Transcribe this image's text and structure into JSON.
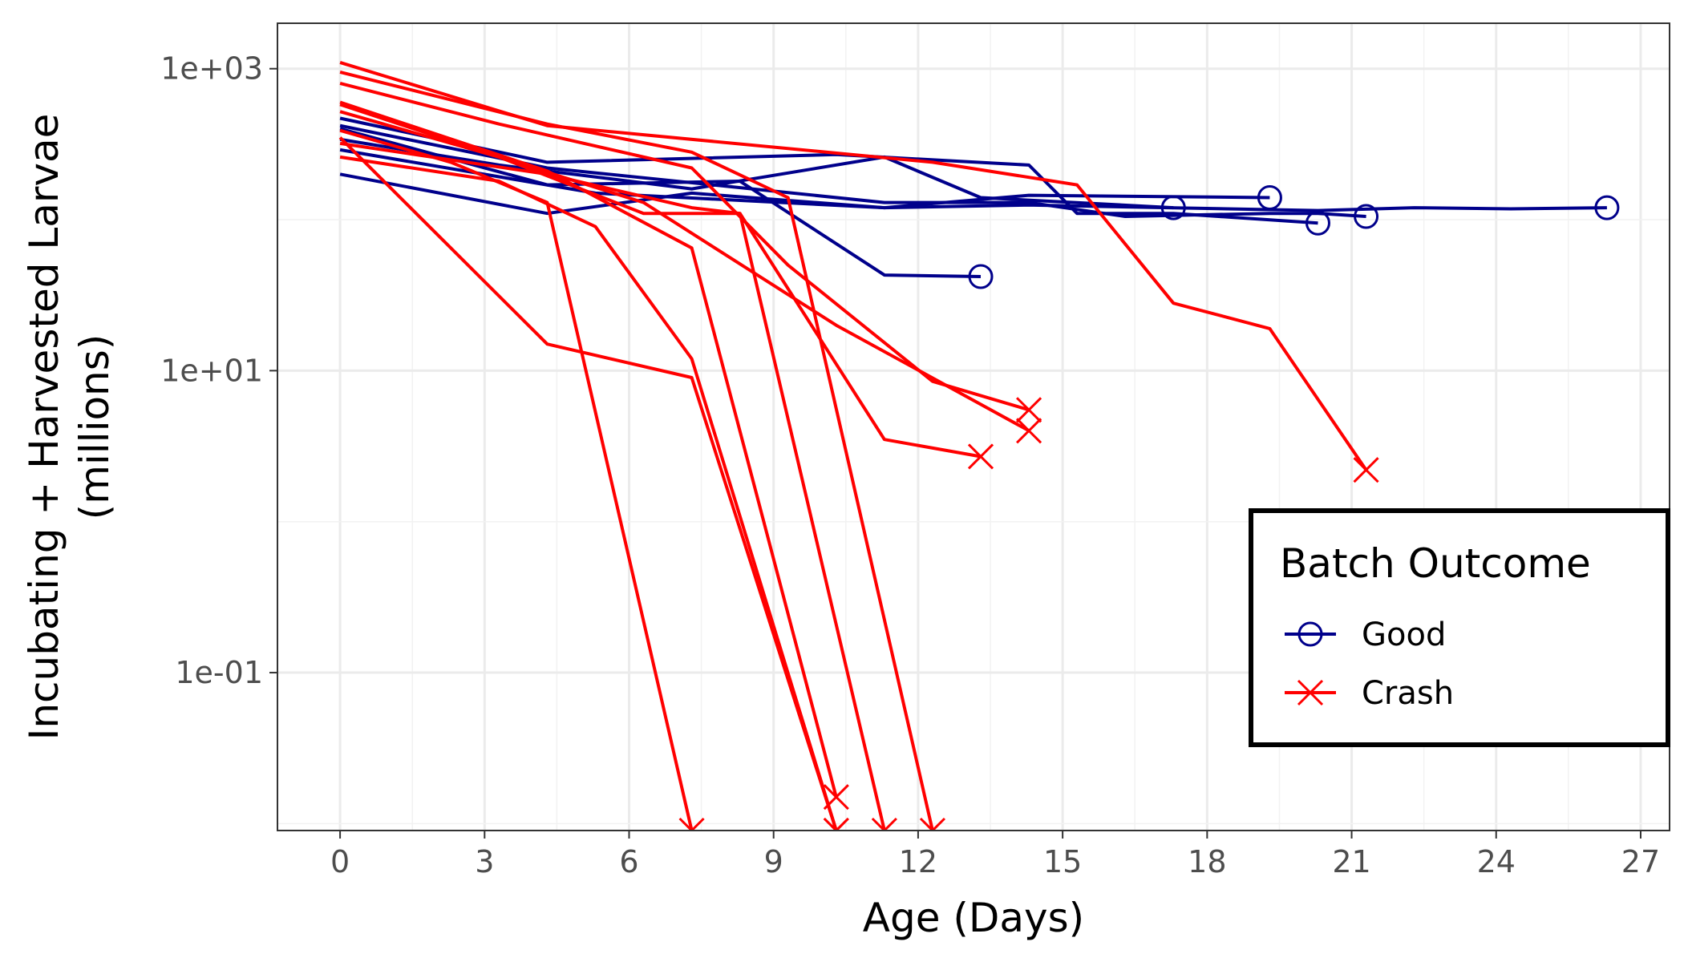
{
  "chart_data": {
    "type": "line",
    "title": "",
    "xlabel": "Age (Days)",
    "ylabel_lines": [
      "Incubating + Harvested Larvae",
      "(millions)"
    ],
    "xlim": [
      -1.3,
      27.6
    ],
    "ylim": [
      0.009,
      2000
    ],
    "y_scale": "log10",
    "x_ticks": [
      0,
      3,
      6,
      9,
      12,
      15,
      18,
      21,
      24,
      27
    ],
    "x_tick_labels": [
      "0",
      "3",
      "6",
      "9",
      "12",
      "15",
      "18",
      "21",
      "24",
      "27"
    ],
    "y_ticks": [
      0.1,
      10,
      1000
    ],
    "y_tick_labels": [
      "1e-01",
      "1e+01",
      "1e+03"
    ],
    "grid": true,
    "legend": {
      "title": "Batch Outcome",
      "position": "right",
      "entries": [
        {
          "label": "Good",
          "color": "#00008b",
          "marker": "circle"
        },
        {
          "label": "Crash",
          "color": "#ff0000",
          "marker": "x"
        }
      ]
    },
    "series": [
      {
        "group": "Good",
        "color": "#00008b",
        "marker": "circle",
        "x": [
          0,
          4.3,
          8.3,
          11.3,
          13.3
        ],
        "y": [
          400,
          170,
          180,
          43,
          42
        ]
      },
      {
        "group": "Good",
        "color": "#00008b",
        "marker": "circle",
        "x": [
          0,
          4.3,
          7.3,
          11.3,
          14.3,
          19.3
        ],
        "y": [
          200,
          110,
          150,
          120,
          145,
          140
        ]
      },
      {
        "group": "Good",
        "color": "#00008b",
        "marker": "circle",
        "x": [
          0,
          3.3,
          7.3,
          11.3,
          13.3,
          17.3
        ],
        "y": [
          340,
          230,
          160,
          260,
          140,
          120
        ]
      },
      {
        "group": "Good",
        "color": "#00008b",
        "marker": "circle",
        "x": [
          0,
          4.3,
          10.3,
          14.3,
          15.3,
          17.3,
          20.3
        ],
        "y": [
          470,
          240,
          270,
          230,
          110,
          110,
          95
        ]
      },
      {
        "group": "Good",
        "color": "#00008b",
        "marker": "circle",
        "x": [
          0,
          4.3,
          11.3,
          14.3,
          16.3,
          19.3,
          20.3,
          21.3
        ],
        "y": [
          420,
          220,
          130,
          130,
          105,
          110,
          110,
          105
        ]
      },
      {
        "group": "Good",
        "color": "#00008b",
        "marker": "circle",
        "x": [
          0,
          5.3,
          11.3,
          14.3,
          20.3,
          22.3,
          24.3,
          26.3
        ],
        "y": [
          290,
          150,
          120,
          125,
          115,
          120,
          118,
          120
        ]
      },
      {
        "group": "Crash",
        "color": "#ff0000",
        "marker": "x",
        "x": [
          0,
          4.3,
          12.3,
          15.3,
          17.3,
          19.3,
          21.3
        ],
        "y": [
          1100,
          420,
          240,
          170,
          28,
          19,
          2.2
        ]
      },
      {
        "group": "Crash",
        "color": "#ff0000",
        "marker": "x",
        "x": [
          0,
          3.3,
          7.3,
          9.3,
          12.3,
          14.3
        ],
        "y": [
          800,
          430,
          220,
          50,
          8.5,
          5.5
        ]
      },
      {
        "group": "Crash",
        "color": "#ff0000",
        "marker": "x",
        "x": [
          0,
          4.3,
          7.3,
          8.3,
          11.3,
          13.3
        ],
        "y": [
          320,
          200,
          120,
          110,
          3.5,
          2.7
        ]
      },
      {
        "group": "Crash",
        "color": "#ff0000",
        "marker": "x",
        "x": [
          0,
          4.3,
          7.3,
          9.3,
          12.3
        ],
        "y": [
          950,
          430,
          280,
          140,
          0.009
        ]
      },
      {
        "group": "Crash",
        "color": "#ff0000",
        "marker": "x",
        "x": [
          0,
          3.3,
          6.3,
          8.3,
          11.3
        ],
        "y": [
          580,
          260,
          110,
          110,
          0.009
        ]
      },
      {
        "group": "Crash",
        "color": "#ff0000",
        "marker": "x",
        "x": [
          0,
          4.3,
          7.3,
          10.3
        ],
        "y": [
          600,
          210,
          65,
          0.015
        ]
      },
      {
        "group": "Crash",
        "color": "#ff0000",
        "marker": "x",
        "x": [
          0,
          4.3,
          7.3,
          10.3
        ],
        "y": [
          350,
          15,
          9,
          0.009
        ]
      },
      {
        "group": "Crash",
        "color": "#ff0000",
        "marker": "x",
        "x": [
          0,
          3.3,
          6.3,
          10.3,
          14.3
        ],
        "y": [
          520,
          260,
          130,
          20,
          4
        ]
      },
      {
        "group": "Crash",
        "color": "#ff0000",
        "marker": "x",
        "x": [
          0,
          2.3,
          4.3,
          7.3
        ],
        "y": [
          390,
          240,
          130,
          0.009
        ]
      },
      {
        "group": "Crash",
        "color": "#ff0000",
        "marker": "x",
        "x": [
          0,
          3.3,
          5.3,
          7.3,
          10.3
        ],
        "y": [
          260,
          180,
          90,
          12,
          0.009
        ]
      }
    ]
  }
}
